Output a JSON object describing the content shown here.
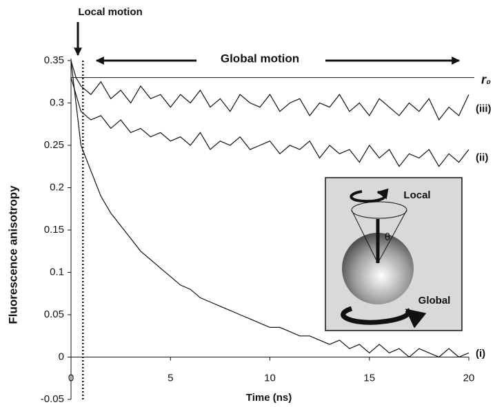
{
  "chart_data": {
    "type": "line",
    "x_label": "Time (ns)",
    "y_label": "Fluorescence anisotropy",
    "x": [
      0,
      0.25,
      0.5,
      1,
      1.5,
      2,
      2.5,
      3,
      3.5,
      4,
      4.5,
      5,
      5.5,
      6,
      6.5,
      7,
      7.5,
      8,
      8.5,
      9,
      9.5,
      10,
      10.5,
      11,
      11.5,
      12,
      12.5,
      13,
      13.5,
      14,
      14.5,
      15,
      15.5,
      16,
      16.5,
      17,
      17.5,
      18,
      18.5,
      19,
      19.5,
      20
    ],
    "series": [
      {
        "name": "(iii)",
        "color": "#111111",
        "values": [
          0.35,
          0.33,
          0.32,
          0.31,
          0.325,
          0.305,
          0.315,
          0.3,
          0.32,
          0.305,
          0.31,
          0.295,
          0.31,
          0.3,
          0.315,
          0.295,
          0.305,
          0.29,
          0.31,
          0.3,
          0.295,
          0.31,
          0.29,
          0.3,
          0.305,
          0.285,
          0.3,
          0.295,
          0.31,
          0.29,
          0.3,
          0.285,
          0.305,
          0.295,
          0.285,
          0.3,
          0.29,
          0.305,
          0.28,
          0.295,
          0.285,
          0.31
        ]
      },
      {
        "name": "(ii)",
        "color": "#111111",
        "values": [
          0.33,
          0.31,
          0.29,
          0.28,
          0.285,
          0.27,
          0.28,
          0.265,
          0.27,
          0.26,
          0.265,
          0.255,
          0.26,
          0.25,
          0.265,
          0.245,
          0.255,
          0.25,
          0.26,
          0.245,
          0.25,
          0.255,
          0.24,
          0.25,
          0.245,
          0.255,
          0.235,
          0.25,
          0.24,
          0.245,
          0.23,
          0.25,
          0.235,
          0.245,
          0.225,
          0.24,
          0.235,
          0.245,
          0.225,
          0.24,
          0.23,
          0.245
        ]
      },
      {
        "name": "(i)",
        "color": "#111111",
        "values": [
          0.35,
          0.3,
          0.25,
          0.22,
          0.19,
          0.17,
          0.155,
          0.14,
          0.125,
          0.115,
          0.105,
          0.095,
          0.085,
          0.08,
          0.07,
          0.065,
          0.06,
          0.055,
          0.05,
          0.045,
          0.04,
          0.035,
          0.035,
          0.03,
          0.025,
          0.025,
          0.02,
          0.015,
          0.02,
          0.01,
          0.015,
          0.005,
          0.015,
          0.005,
          0.01,
          0,
          0.01,
          0.005,
          0,
          0.01,
          0,
          0.005
        ]
      }
    ],
    "xlim": [
      0,
      20
    ],
    "xticks": [
      0,
      5,
      10,
      15,
      20
    ],
    "ylim": [
      -0.05,
      0.35
    ],
    "yticks": [
      -0.05,
      0,
      0.05,
      0.1,
      0.15,
      0.2,
      0.25,
      0.3,
      0.35
    ],
    "reference_line": {
      "value": 0.33,
      "label": "r₀"
    },
    "local_motion": {
      "text": "Local motion",
      "x": 0.6
    },
    "global_motion": {
      "text": "Global motion"
    },
    "inset": {
      "local_label": "Local",
      "angle_label": "θ",
      "global_label": "Global"
    }
  }
}
